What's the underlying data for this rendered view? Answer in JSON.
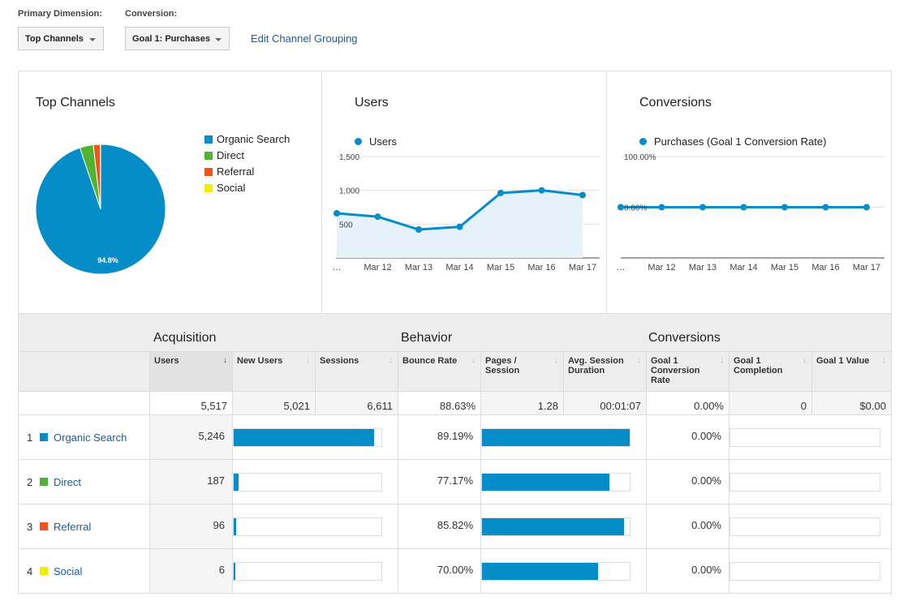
{
  "controls": {
    "primary_dimension_label": "Primary Dimension:",
    "primary_dimension_value": "Top Channels",
    "conversion_label": "Conversion:",
    "conversion_value": "Goal 1: Purchases",
    "edit_link": "Edit Channel Grouping"
  },
  "colors": {
    "organic": "#058dc7",
    "direct": "#50b432",
    "referral": "#ed561b",
    "social": "#edef00"
  },
  "top_channels": {
    "title": "Top Channels",
    "legend": [
      "Organic Search",
      "Direct",
      "Referral",
      "Social"
    ]
  },
  "users_panel": {
    "title": "Users",
    "legend": "Users"
  },
  "conversions_panel": {
    "title": "Conversions",
    "legend": "Purchases (Goal 1 Conversion Rate)"
  },
  "chart_data": [
    {
      "type": "pie",
      "title": "Top Channels",
      "labels": [
        "Organic Search",
        "Direct",
        "Referral",
        "Social"
      ],
      "values": [
        94.8,
        3.4,
        1.7,
        0.1
      ],
      "data_labels": [
        "94.8%"
      ],
      "legend_position": "right"
    },
    {
      "type": "area",
      "title": "Users",
      "x": [
        "…",
        "Mar 12",
        "Mar 13",
        "Mar 14",
        "Mar 15",
        "Mar 16",
        "Mar 17"
      ],
      "series": [
        {
          "name": "Users",
          "values": [
            660,
            610,
            420,
            460,
            960,
            1000,
            930
          ]
        }
      ],
      "ylim": [
        0,
        1500
      ],
      "yticks": [
        "1,500",
        "1,000",
        "500"
      ],
      "ytick_values": [
        1500,
        1000,
        500
      ],
      "grid": true
    },
    {
      "type": "line",
      "title": "Conversions",
      "x": [
        "…",
        "Mar 12",
        "Mar 13",
        "Mar 14",
        "Mar 15",
        "Mar 16",
        "Mar 17"
      ],
      "series": [
        {
          "name": "Purchases (Goal 1 Conversion Rate)",
          "values": [
            0,
            0,
            0,
            0,
            0,
            0,
            0
          ]
        }
      ],
      "ylim": [
        -100,
        100
      ],
      "yticks": [
        "100.00%",
        "0.00%"
      ],
      "ytick_values": [
        100,
        0
      ],
      "grid": true
    }
  ],
  "table": {
    "groups": {
      "acquisition": "Acquisition",
      "behavior": "Behavior",
      "conversions": "Conversions"
    },
    "headers": [
      "Users",
      "New Users",
      "Sessions",
      "Bounce Rate",
      "Pages / Session",
      "Avg. Session Duration",
      "Goal 1 Conversion Rate",
      "Goal 1 Completion",
      "Goal 1 Value"
    ],
    "totals": [
      "5,517",
      "5,021",
      "6,611",
      "88.63%",
      "1.28",
      "00:01:07",
      "0.00%",
      "0",
      "$0.00"
    ],
    "rows": [
      {
        "index": "1",
        "name": "Organic Search",
        "users": "5,246",
        "users_share": 0.951,
        "bounce_rate": "89.19%",
        "bounce_share": 1.0,
        "conv_rate": "0.00%"
      },
      {
        "index": "2",
        "name": "Direct",
        "users": "187",
        "users_share": 0.034,
        "bounce_rate": "77.17%",
        "bounce_share": 0.865,
        "conv_rate": "0.00%"
      },
      {
        "index": "3",
        "name": "Referral",
        "users": "96",
        "users_share": 0.017,
        "bounce_rate": "85.82%",
        "bounce_share": 0.962,
        "conv_rate": "0.00%"
      },
      {
        "index": "4",
        "name": "Social",
        "users": "6",
        "users_share": 0.002,
        "bounce_rate": "70.00%",
        "bounce_share": 0.785,
        "conv_rate": "0.00%"
      }
    ]
  }
}
